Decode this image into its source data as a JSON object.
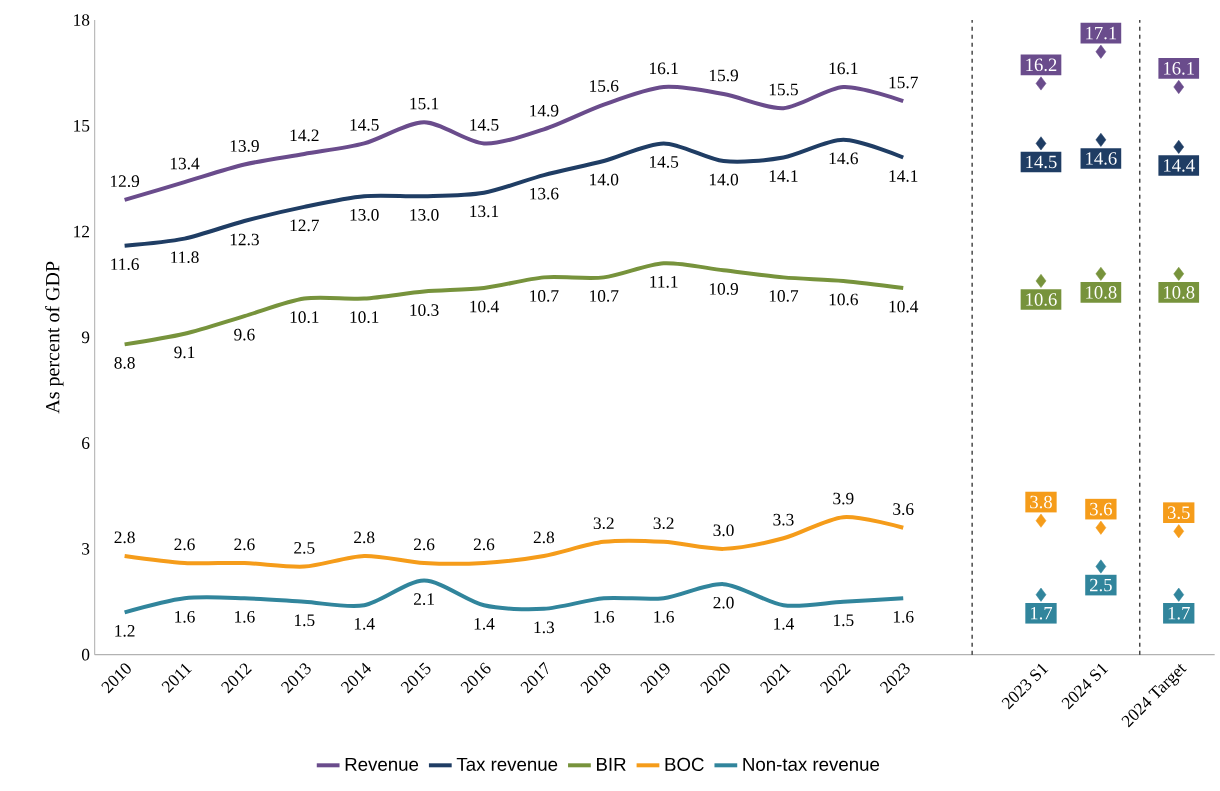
{
  "chart_data": {
    "type": "line",
    "ylabel": "As percent of GDP",
    "categories": [
      "2010",
      "2011",
      "2012",
      "2013",
      "2014",
      "2015",
      "2016",
      "2017",
      "2018",
      "2019",
      "2020",
      "2021",
      "2022",
      "2023",
      "2023 S1",
      "2024 S1",
      "2024 Target"
    ],
    "ylim": [
      0,
      18
    ],
    "yticks": [
      0,
      3,
      6,
      9,
      12,
      15,
      18
    ],
    "legend": "bottom",
    "series": [
      {
        "name": "Revenue",
        "marker": "none",
        "color": "#6a4c8c",
        "values": [
          12.9,
          13.4,
          13.9,
          14.2,
          14.5,
          15.1,
          14.5,
          14.9,
          15.6,
          16.1,
          15.9,
          15.5,
          16.1,
          15.7,
          null,
          null,
          null
        ],
        "value_labels": [
          "12.9",
          "13.4",
          "13.9",
          "14.2",
          "14.5",
          "15.1",
          "14.5",
          "14.9",
          "15.6",
          "16.1",
          "15.9",
          "15.5",
          "16.1",
          "15.7",
          null,
          null,
          null
        ]
      },
      {
        "name": "Tax revenue",
        "marker": "none",
        "color": "#1f3d64",
        "values": [
          11.6,
          11.8,
          12.3,
          12.7,
          13.0,
          13.0,
          13.1,
          13.6,
          14.0,
          14.5,
          14.0,
          14.1,
          14.6,
          14.1,
          null,
          null,
          null
        ],
        "value_labels": [
          "11.6",
          "11.8",
          "12.3",
          "12.7",
          "13.0",
          "13.0",
          "13.1",
          "13.6",
          "14.0",
          "14.5",
          "14.0",
          "14.1",
          "14.6",
          "14.1",
          null,
          null,
          null
        ]
      },
      {
        "name": "BIR",
        "marker": "none",
        "color": "#77933c",
        "values": [
          8.8,
          9.1,
          9.6,
          10.1,
          10.1,
          10.3,
          10.4,
          10.7,
          10.7,
          11.1,
          10.9,
          10.7,
          10.6,
          10.4,
          null,
          null,
          null
        ],
        "value_labels": [
          "8.8",
          "9.1",
          "9.6",
          "10.1",
          "10.1",
          "10.3",
          "10.4",
          "10.7",
          "10.7",
          "11.1",
          "10.9",
          "10.7",
          "10.6",
          "10.4",
          null,
          null,
          null
        ]
      },
      {
        "name": "BOC",
        "marker": "none",
        "color": "#f59c1a",
        "values": [
          2.8,
          2.6,
          2.6,
          2.5,
          2.8,
          2.6,
          2.6,
          2.8,
          3.2,
          3.2,
          3.0,
          3.3,
          3.9,
          3.6,
          null,
          null,
          null
        ],
        "value_labels": [
          "2.8",
          "2.6",
          "2.6",
          "2.5",
          "2.8",
          "2.6",
          "2.6",
          "2.8",
          "3.2",
          "3.2",
          "3.0",
          "3.3",
          "3.9",
          "3.6",
          null,
          null,
          null
        ]
      },
      {
        "name": "Non-tax revenue",
        "marker": "none",
        "color": "#31859c",
        "values": [
          1.2,
          1.6,
          1.6,
          1.5,
          1.4,
          2.1,
          1.4,
          1.3,
          1.6,
          1.6,
          2.0,
          1.4,
          1.5,
          1.6,
          null,
          null,
          null
        ],
        "value_labels": [
          "1.2",
          "1.6",
          "1.6",
          "1.5",
          "1.4",
          "2.1",
          "1.4",
          "1.3",
          "1.6",
          "1.6",
          "2.0",
          "1.4",
          "1.5",
          "1.6",
          null,
          null,
          null
        ]
      },
      {
        "type": "scatter",
        "marker": "diamond",
        "color": "#6a4c8c",
        "values": [
          null,
          null,
          null,
          null,
          null,
          null,
          null,
          null,
          null,
          null,
          null,
          null,
          null,
          null,
          16.2,
          17.1,
          16.1
        ],
        "value_labels": [
          null,
          null,
          null,
          null,
          null,
          null,
          null,
          null,
          null,
          null,
          null,
          null,
          null,
          null,
          "16.2",
          "17.1",
          "16.1"
        ]
      },
      {
        "type": "scatter",
        "marker": "diamond",
        "color": "#1f3d64",
        "values": [
          null,
          null,
          null,
          null,
          null,
          null,
          null,
          null,
          null,
          null,
          null,
          null,
          null,
          null,
          14.5,
          14.6,
          14.4
        ],
        "value_labels": [
          null,
          null,
          null,
          null,
          null,
          null,
          null,
          null,
          null,
          null,
          null,
          null,
          null,
          null,
          "14.5",
          "14.6",
          "14.4"
        ]
      },
      {
        "type": "scatter",
        "marker": "diamond",
        "color": "#77933c",
        "values": [
          null,
          null,
          null,
          null,
          null,
          null,
          null,
          null,
          null,
          null,
          null,
          null,
          null,
          null,
          10.6,
          10.8,
          10.8
        ],
        "value_labels": [
          null,
          null,
          null,
          null,
          null,
          null,
          null,
          null,
          null,
          null,
          null,
          null,
          null,
          null,
          "10.6",
          "10.8",
          "10.8"
        ]
      },
      {
        "type": "scatter",
        "marker": "diamond",
        "color": "#f59c1a",
        "values": [
          null,
          null,
          null,
          null,
          null,
          null,
          null,
          null,
          null,
          null,
          null,
          null,
          null,
          null,
          3.8,
          3.6,
          3.5
        ],
        "value_labels": [
          null,
          null,
          null,
          null,
          null,
          null,
          null,
          null,
          null,
          null,
          null,
          null,
          null,
          null,
          "3.8",
          "3.6",
          "3.5"
        ]
      },
      {
        "type": "scatter",
        "marker": "diamond",
        "color": "#31859c",
        "values": [
          null,
          null,
          null,
          null,
          null,
          null,
          null,
          null,
          null,
          null,
          null,
          null,
          null,
          null,
          1.7,
          2.5,
          1.7
        ],
        "value_labels": [
          null,
          null,
          null,
          null,
          null,
          null,
          null,
          null,
          null,
          null,
          null,
          null,
          null,
          null,
          "1.7",
          "2.5",
          "1.7"
        ]
      }
    ]
  }
}
